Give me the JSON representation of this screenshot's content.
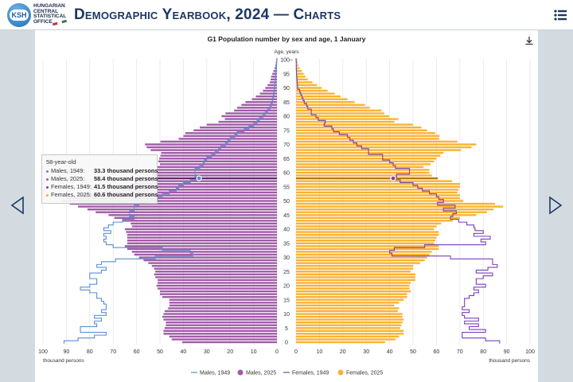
{
  "header": {
    "logo_text": "KSH",
    "org_name": [
      "HUNGARIAN",
      "CENTRAL",
      "STATISTICAL",
      "OFFICE"
    ],
    "title": "Demographic Yearbook, 2024 — Charts",
    "menu_icon": "hamburger-menu-icon"
  },
  "nav": {
    "prev_icon": "chevron-left-icon",
    "next_icon": "chevron-right-icon"
  },
  "download_icon": "download-icon",
  "tooltip": {
    "heading": "58-year-old",
    "rows": [
      {
        "label": "Males, 1949:",
        "value": "33.3 thousand persons",
        "color": "#5b8ed6"
      },
      {
        "label": "Males, 2025:",
        "value": "58.4 thousand persons",
        "color": "#a05ca8"
      },
      {
        "label": "Females, 1949:",
        "value": "41.5 thousand persons",
        "color": "#7a3fbf"
      },
      {
        "label": "Females, 2025:",
        "value": "60.6 thousand persons",
        "color": "#f9b233"
      }
    ]
  },
  "chart_data": {
    "type": "bar",
    "subtype": "population-pyramid",
    "title": "G1 Population number by sex and age, 1 January",
    "ylabel": "Age, years",
    "xlabel_left": "thousand persons",
    "xlabel_right": "thousand persons",
    "xlim": [
      0,
      100
    ],
    "x_ticks_left": [
      "100",
      "90",
      "80",
      "70",
      "60",
      "50",
      "40",
      "30",
      "20",
      "10",
      "0"
    ],
    "x_ticks_right": [
      "0",
      "10",
      "20",
      "30",
      "40",
      "50",
      "60",
      "70",
      "80",
      "90",
      "100"
    ],
    "age_ticks": [
      "0",
      "5",
      "10",
      "15",
      "20",
      "25",
      "30",
      "35",
      "40",
      "45",
      "50",
      "55",
      "60",
      "65",
      "70",
      "75",
      "80",
      "85",
      "90",
      "95",
      "100–"
    ],
    "grid": true,
    "legend_position": "bottom",
    "highlighted_age": 58,
    "ages_note": "index = age 0..100",
    "series": [
      {
        "name": "Males, 1949",
        "kind": "step-line",
        "side": "left",
        "color": "#5b8ed6",
        "values": [
          91,
          85,
          78,
          73,
          84,
          84,
          77,
          78,
          75,
          78,
          73,
          75,
          73,
          73,
          74,
          75,
          77,
          77,
          80,
          84,
          80,
          77,
          77,
          80,
          80,
          75,
          73,
          77,
          75,
          69,
          52,
          36,
          37,
          49,
          70,
          73,
          74,
          73,
          74,
          71,
          74,
          72,
          70,
          66,
          61,
          63,
          63,
          61,
          61,
          59,
          55,
          51,
          49,
          46,
          43,
          42,
          40,
          37,
          33.3,
          35,
          35,
          35,
          33,
          31.5,
          31,
          30,
          28,
          26.5,
          25,
          24,
          22,
          21,
          20,
          18,
          17,
          14,
          12,
          10,
          8.5,
          7.5,
          6,
          5,
          4,
          3,
          2.5,
          2,
          1.8,
          1.5,
          1.3,
          1.1,
          1,
          0.9,
          0.8,
          0.7,
          0.6,
          0.5,
          0.4,
          0.3,
          0.2,
          0.1,
          0
        ]
      },
      {
        "name": "Males, 2025",
        "kind": "bar",
        "side": "left",
        "color": "#a05ca8",
        "values": [
          40.5,
          45,
          46,
          48.5,
          48.5,
          48,
          47.5,
          47.5,
          48.5,
          49,
          48.5,
          48,
          46.5,
          46,
          46,
          46,
          49,
          50,
          50,
          51,
          51.5,
          51,
          51,
          52,
          52.5,
          52,
          52.5,
          53.5,
          55,
          57,
          59,
          61,
          62,
          64,
          65,
          64,
          64,
          64,
          64,
          64.5,
          65,
          62,
          62.5,
          66,
          69.5,
          72,
          77.5,
          81,
          85,
          88.5,
          91.7,
          90,
          85,
          75,
          70,
          66,
          62,
          61,
          58.4,
          53.5,
          53.2,
          51.7,
          51.2,
          50,
          50.7,
          50.3,
          49.8,
          49.5,
          54,
          55.7,
          56.4,
          49.8,
          42,
          40,
          39.2,
          35.6,
          33,
          30,
          25,
          22.3,
          23.7,
          22,
          18.3,
          17,
          15.2,
          13.5,
          10.7,
          9,
          7.3,
          6,
          5,
          4,
          3,
          2.7,
          2.5,
          2,
          1.5,
          1,
          0.7,
          0.5,
          0.3
        ]
      },
      {
        "name": "Females, 1949",
        "kind": "step-line",
        "side": "right",
        "color": "#7a3fbf",
        "values": [
          87,
          81,
          71,
          71,
          81,
          74,
          78,
          72,
          78,
          72,
          71,
          74,
          71,
          72,
          72,
          72,
          74,
          76,
          78,
          76,
          81,
          77,
          77,
          80,
          84,
          77,
          82,
          86,
          84,
          84,
          66,
          41,
          40,
          42,
          55,
          81,
          79,
          83,
          76,
          80,
          76.5,
          76,
          73,
          69.5,
          66,
          67,
          68.5,
          63,
          68,
          60.5,
          63,
          61,
          60,
          57,
          54,
          52,
          50,
          44.5,
          41.5,
          43,
          48.5,
          48.5,
          42.5,
          41.5,
          40,
          37,
          37,
          31,
          31,
          28,
          26,
          24.5,
          23,
          22,
          18.5,
          16,
          15.3,
          12,
          12.5,
          9.5,
          8.5,
          6.5,
          6.5,
          5,
          4.5,
          3.5,
          3,
          2.5,
          2,
          1.5,
          0.7,
          0.6,
          0.5,
          0.4,
          0.3,
          0.2,
          0.2,
          0.1,
          0.1,
          0.1,
          0
        ]
      },
      {
        "name": "Females, 2025",
        "kind": "bar",
        "side": "right",
        "color": "#f9b233",
        "values": [
          38,
          42.5,
          44,
          46,
          46,
          44.5,
          45,
          45.5,
          46,
          45.5,
          45.5,
          43.5,
          44,
          42,
          44,
          46,
          47.5,
          47.5,
          49,
          48.5,
          48.5,
          49,
          51,
          51,
          51,
          49,
          50,
          50,
          53,
          55,
          56,
          57,
          58,
          61,
          61,
          59,
          59.5,
          60,
          61,
          61,
          59,
          60,
          62,
          67,
          70,
          77,
          81.5,
          84.5,
          88.5,
          85,
          71.5,
          70,
          70,
          69,
          69.5,
          70,
          70,
          66.7,
          60.6,
          58,
          57,
          57,
          54.5,
          57.5,
          59,
          60,
          61.7,
          63,
          70.5,
          75,
          77,
          69,
          61.2,
          61.3,
          59.5,
          56,
          53.6,
          50,
          42,
          43.7,
          39.8,
          37.7,
          36.5,
          31.5,
          29.5,
          25,
          22,
          19,
          16.5,
          13.5,
          11,
          9,
          7,
          5,
          4,
          3.3,
          2.5,
          1.5,
          1,
          0.7,
          0.5
        ]
      }
    ]
  }
}
